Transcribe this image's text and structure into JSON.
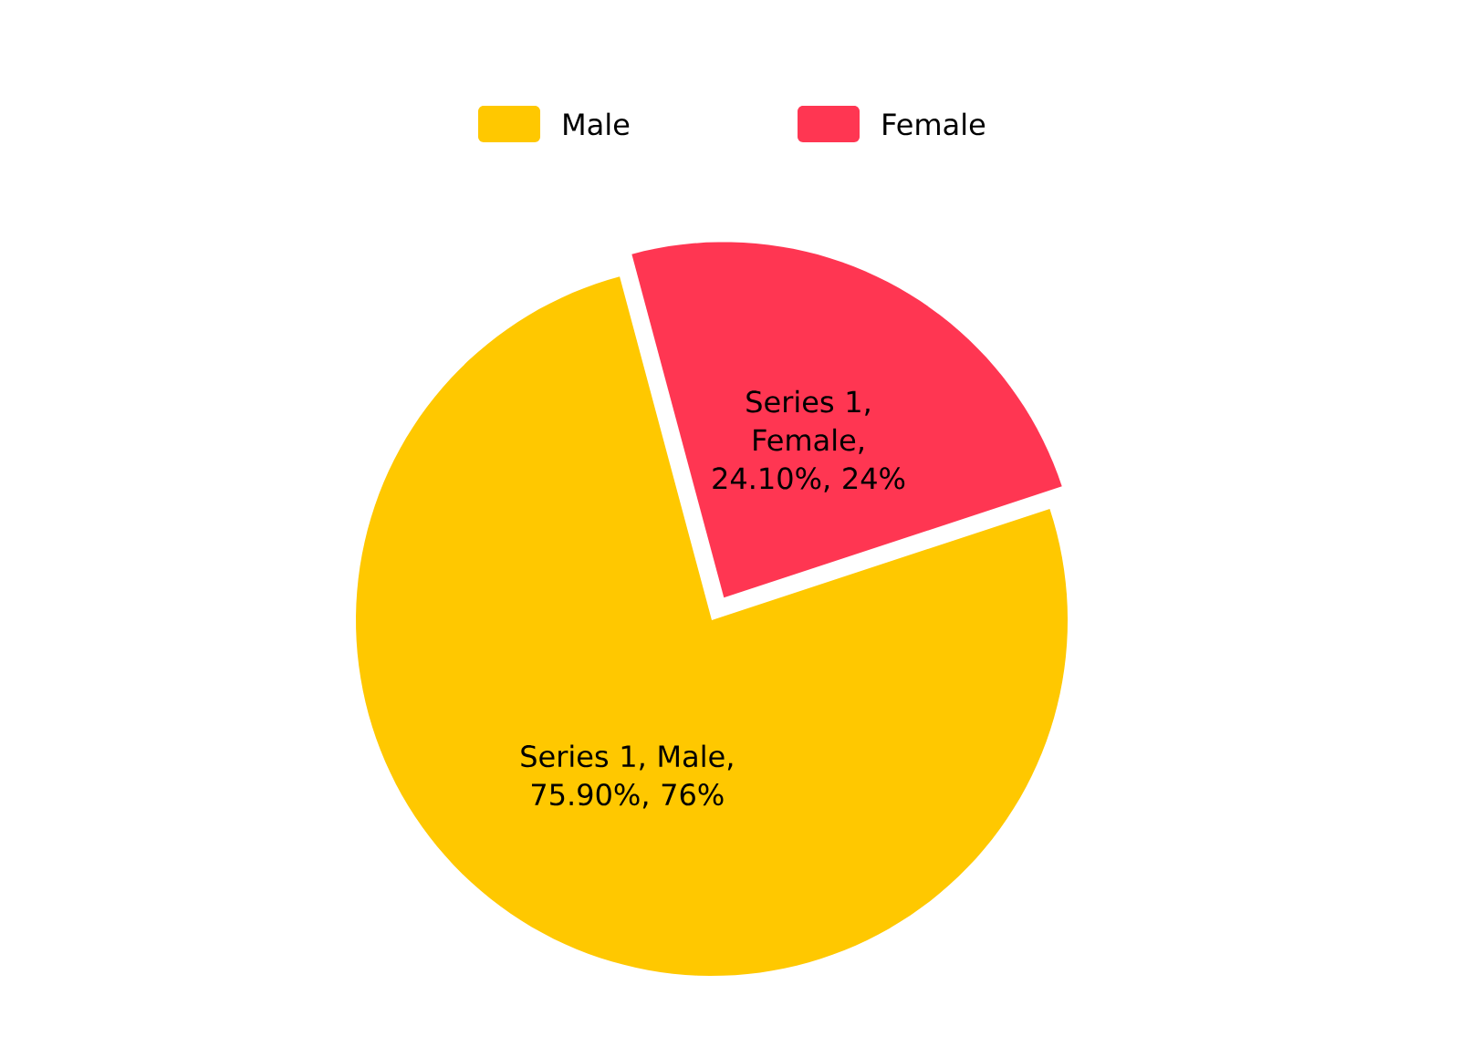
{
  "chart_data": {
    "type": "pie",
    "categories": [
      "Male",
      "Female"
    ],
    "values": [
      75.9,
      24.1
    ],
    "colors": [
      "#ffc800",
      "#ff3652"
    ],
    "value_labels": [
      "Series 1, Male, 75.90%, 76%",
      "Series 1, Female, 24.10%, 24%"
    ],
    "legend": "top"
  }
}
